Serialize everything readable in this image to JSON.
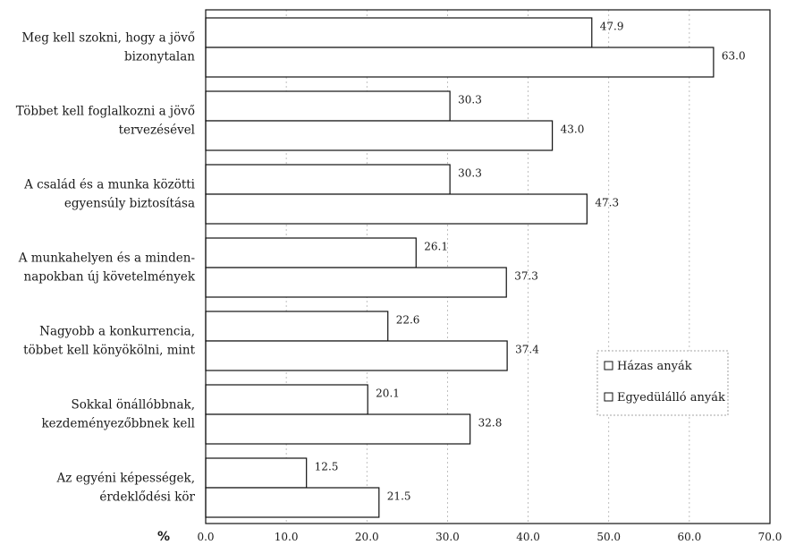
{
  "chart_data": {
    "type": "bar",
    "orientation": "horizontal",
    "categories": [
      [
        "Meg kell szokni, hogy  a jövő",
        "bizonytalan"
      ],
      [
        "Többet kell foglalkozni a jövő",
        "tervezésével"
      ],
      [
        "A család és a munka közötti",
        "egyensúly biztosítása"
      ],
      [
        "A munkahelyen és a minden-",
        "napokban új követelmények"
      ],
      [
        "Nagyobb a konkurrencia,",
        "többet kell könyökölni, mint"
      ],
      [
        "Sokkal önállóbbnak,",
        "kezdeményezőbbnek kell"
      ],
      [
        "Az egyéni képességek,",
        "érdeklődési kör"
      ]
    ],
    "series": [
      {
        "name": "Házas anyák",
        "values": [
          47.9,
          30.3,
          30.3,
          26.1,
          22.6,
          20.1,
          12.5
        ]
      },
      {
        "name": "Egyedülálló anyák",
        "values": [
          63.0,
          43.0,
          47.3,
          37.3,
          37.4,
          32.8,
          21.5
        ]
      }
    ],
    "xlim": [
      0,
      70
    ],
    "xticks": [
      "0.0",
      "10.0",
      "20.0",
      "30.0",
      "40.0",
      "50.0",
      "60.0",
      "70.0"
    ],
    "xlabel": "%",
    "grid": true,
    "legend_position": "right"
  }
}
